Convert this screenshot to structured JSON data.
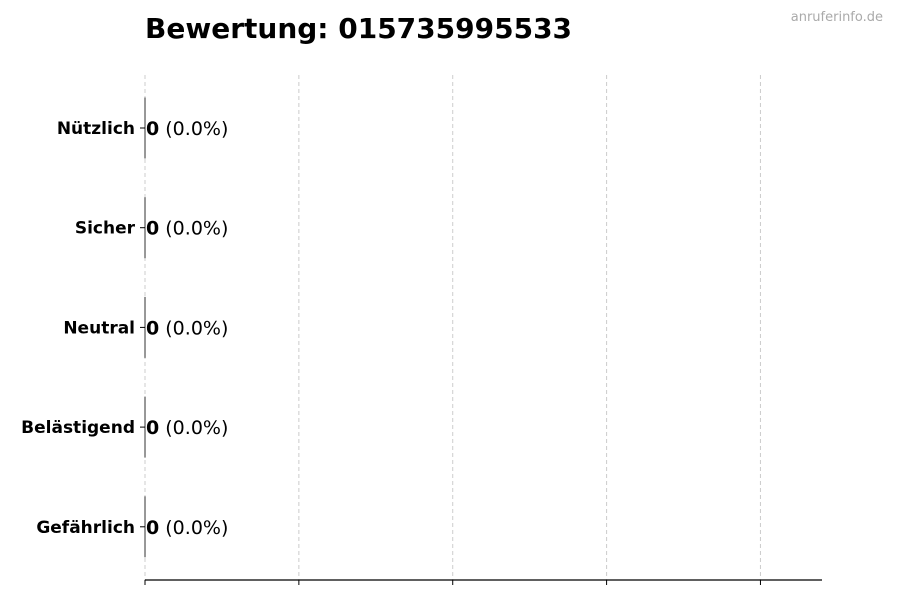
{
  "chart_data": {
    "type": "bar",
    "orientation": "horizontal",
    "title": "Bewertung: 015735995533",
    "categories": [
      "Nützlich",
      "Sicher",
      "Neutral",
      "Belästigend",
      "Gefährlich"
    ],
    "values": [
      0,
      0,
      0,
      0,
      0
    ],
    "value_labels": [
      "0",
      "0",
      "0",
      "0",
      "0"
    ],
    "percent_labels": [
      "(0.0%)",
      "(0.0%)",
      "(0.0%)",
      "(0.0%)",
      "(0.0%)"
    ],
    "xlabel": "",
    "ylabel": "",
    "xlim": [
      0,
      4.4
    ],
    "xticks": [
      0,
      1,
      2,
      3,
      4
    ],
    "xtick_labels_shown": false,
    "grid": "x, dashed",
    "bar_edge_color": "#333333",
    "grid_color": "#cccccc"
  },
  "watermark": "anruferinfo.de"
}
